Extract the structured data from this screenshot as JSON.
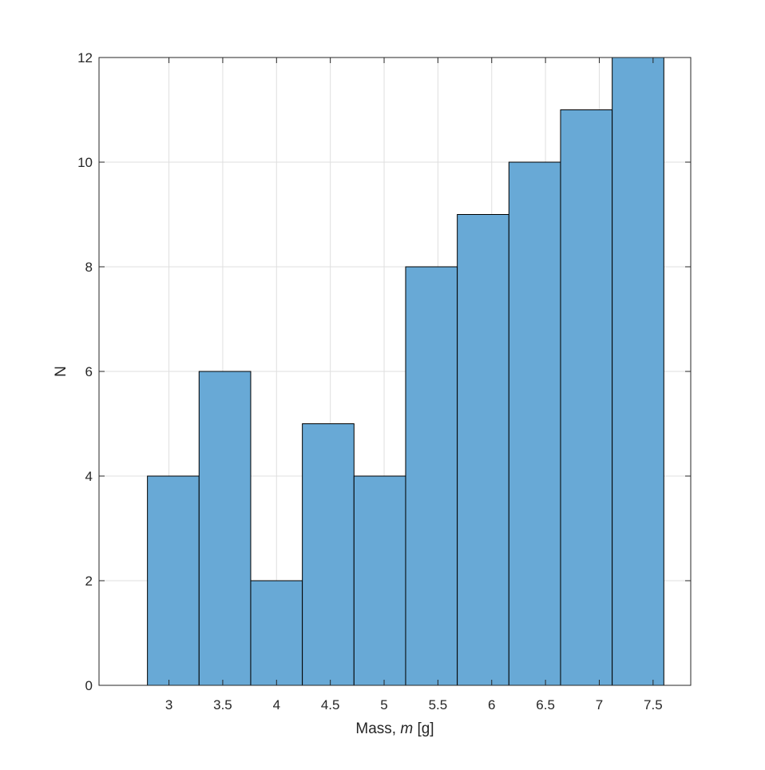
{
  "chart_data": {
    "type": "bar",
    "title": "",
    "xlabel_text": "Mass, ",
    "xlabel_var": "m",
    "xlabel_unit": " [g]",
    "ylabel": "N",
    "bin_edges": [
      2.8,
      3.28,
      3.76,
      4.24,
      4.72,
      5.2,
      5.68,
      6.16,
      6.64,
      7.12,
      7.6
    ],
    "values": [
      4,
      6,
      2,
      5,
      4,
      8,
      9,
      10,
      11,
      12
    ],
    "xlim": [
      2.35,
      7.85
    ],
    "ylim": [
      0,
      12
    ],
    "xticks": [
      3,
      3.5,
      4,
      4.5,
      5,
      5.5,
      6,
      6.5,
      7,
      7.5
    ],
    "xtick_labels": [
      "3",
      "3.5",
      "4",
      "4.5",
      "5",
      "5.5",
      "6",
      "6.5",
      "7",
      "7.5"
    ],
    "yticks": [
      0,
      2,
      4,
      6,
      8,
      10,
      12
    ],
    "ytick_labels": [
      "0",
      "2",
      "4",
      "6",
      "8",
      "10",
      "12"
    ],
    "grid": true,
    "bar_color": "#68a9d6",
    "bar_edge_color": "#000000"
  }
}
